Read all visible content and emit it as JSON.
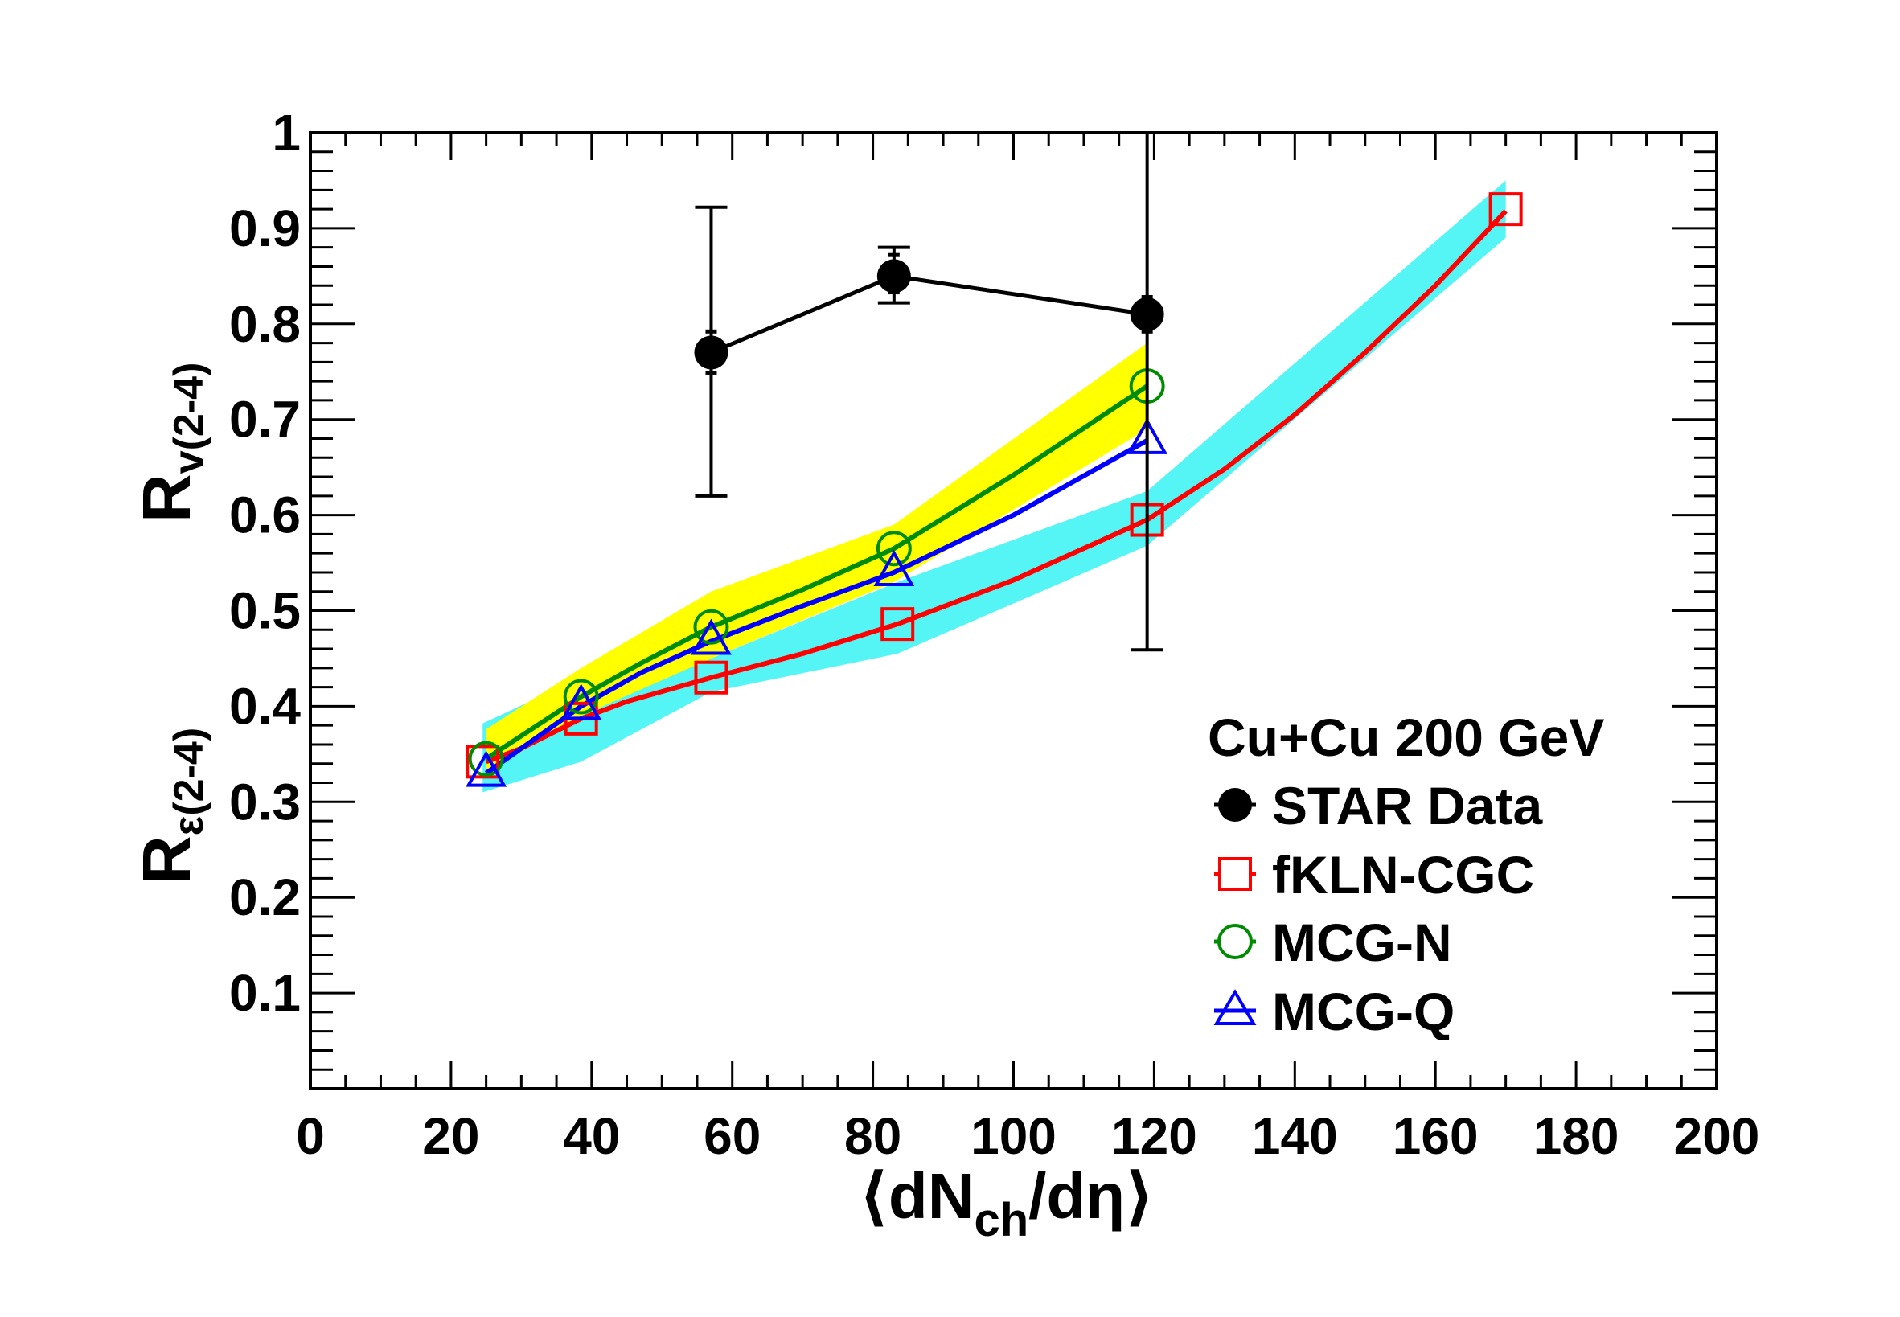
{
  "chart_data": {
    "type": "line",
    "xlim": [
      0,
      200
    ],
    "ylim": [
      0,
      1
    ],
    "xticks": [
      0,
      20,
      40,
      60,
      80,
      100,
      120,
      140,
      160,
      180,
      200
    ],
    "yticks": [
      0.1,
      0.2,
      0.3,
      0.4,
      0.5,
      0.6,
      0.7,
      0.8,
      0.9,
      1
    ],
    "xtick_labels": [
      "0",
      "20",
      "40",
      "60",
      "80",
      "100",
      "120",
      "140",
      "160",
      "180",
      "200"
    ],
    "ytick_labels": [
      "0.1",
      "0.2",
      "0.3",
      "0.4",
      "0.5",
      "0.6",
      "0.7",
      "0.8",
      "0.9",
      "1"
    ],
    "xlabel": {
      "open": "⟨dN",
      "sub": "ch",
      "rest": "/dη",
      "close": "⟩"
    },
    "ylabel_top": {
      "main": "R",
      "sub": "v(2-4)"
    },
    "ylabel_bottom": {
      "main": "R",
      "sub": "ε(2-4)"
    },
    "legend": {
      "title": "Cu+Cu 200 GeV",
      "entries": [
        "STAR Data",
        "fKLN-CGC",
        "MCG-N",
        "MCG-Q"
      ]
    },
    "series": [
      {
        "name": "STAR Data",
        "color": "#000000",
        "marker": "filled-circle",
        "x": [
          57,
          83,
          119
        ],
        "y": [
          0.77,
          0.85,
          0.81
        ],
        "err_low": [
          0.62,
          0.822,
          0.459
        ],
        "err_high": [
          0.922,
          0.88,
          1.0
        ],
        "stat_low": [
          0.749,
          0.833,
          0.792
        ],
        "stat_high": [
          0.792,
          0.872,
          0.828
        ]
      },
      {
        "name": "fKLN-CGC",
        "color": "#ff0000",
        "marker": "open-square",
        "band_color": "#55f5f5",
        "x": [
          24.5,
          38.5,
          57,
          83.5,
          119,
          170
        ],
        "y": [
          0.342,
          0.387,
          0.43,
          0.486,
          0.595,
          0.92
        ],
        "band_low": [
          0.31,
          0.342,
          0.415,
          0.455,
          0.568,
          0.89
        ],
        "band_high": [
          0.382,
          0.43,
          0.45,
          0.53,
          0.625,
          0.95
        ],
        "curve_x": [
          25,
          30,
          38.5,
          45,
          57,
          70,
          83.5,
          100,
          119,
          130,
          140,
          150,
          160,
          170
        ],
        "curve_y": [
          0.342,
          0.356,
          0.387,
          0.405,
          0.43,
          0.455,
          0.486,
          0.532,
          0.595,
          0.648,
          0.705,
          0.77,
          0.84,
          0.918
        ]
      },
      {
        "name": "MCG-N",
        "color": "#008c00",
        "marker": "open-circle",
        "band_color": "#ffff00",
        "x": [
          25,
          38.5,
          57,
          83,
          119
        ],
        "y": [
          0.345,
          0.41,
          0.483,
          0.565,
          0.735
        ],
        "band_low": [
          0.33,
          0.39,
          0.45,
          0.53,
          0.69
        ],
        "band_high": [
          0.376,
          0.44,
          0.52,
          0.59,
          0.78
        ],
        "curve_x": [
          25,
          38.5,
          47,
          57,
          70,
          83,
          100,
          119
        ],
        "curve_y": [
          0.345,
          0.41,
          0.445,
          0.483,
          0.522,
          0.565,
          0.642,
          0.735
        ]
      },
      {
        "name": "MCG-Q",
        "color": "#0000ff",
        "marker": "open-triangle",
        "x": [
          25,
          38.5,
          57,
          83,
          119
        ],
        "y": [
          0.33,
          0.4,
          0.468,
          0.54,
          0.678
        ],
        "curve_x": [
          25,
          38.5,
          47,
          57,
          70,
          83,
          100,
          119
        ],
        "curve_y": [
          0.33,
          0.4,
          0.435,
          0.468,
          0.505,
          0.54,
          0.6,
          0.678
        ]
      }
    ]
  }
}
